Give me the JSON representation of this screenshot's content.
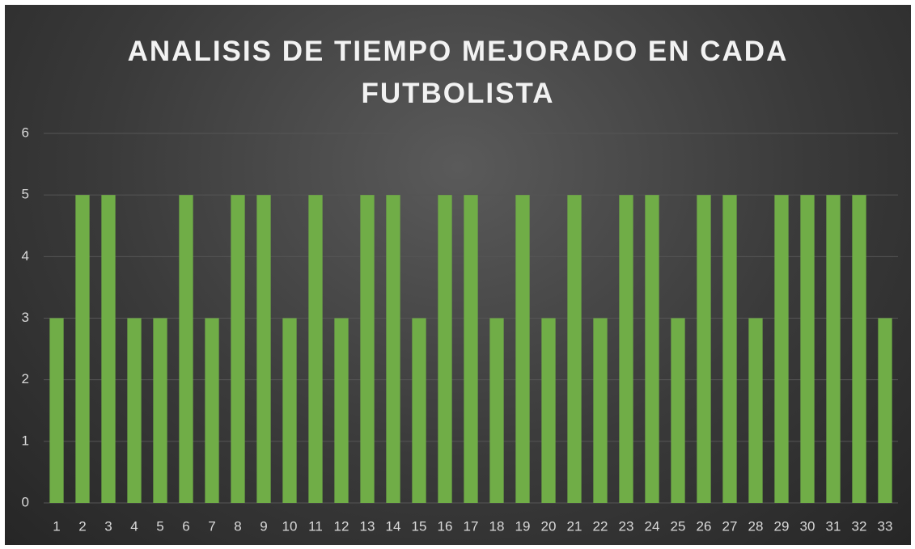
{
  "chart_data": {
    "type": "bar",
    "title": "ANALISIS DE TIEMPO MEJORADO EN CADA FUTBOLISTA",
    "categories": [
      "1",
      "2",
      "3",
      "4",
      "5",
      "6",
      "7",
      "8",
      "9",
      "10",
      "11",
      "12",
      "13",
      "14",
      "15",
      "16",
      "17",
      "18",
      "19",
      "20",
      "21",
      "22",
      "23",
      "24",
      "25",
      "26",
      "27",
      "28",
      "29",
      "30",
      "31",
      "32",
      "33"
    ],
    "values": [
      3,
      5,
      5,
      3,
      3,
      5,
      3,
      5,
      5,
      3,
      5,
      3,
      5,
      5,
      3,
      5,
      5,
      3,
      5,
      3,
      5,
      3,
      5,
      5,
      3,
      5,
      5,
      3,
      5,
      5,
      5,
      5,
      3
    ],
    "color": "#70ad47",
    "ylim": [
      0,
      6
    ],
    "yticks": [
      0,
      1,
      2,
      3,
      4,
      5,
      6
    ],
    "grid": true
  }
}
